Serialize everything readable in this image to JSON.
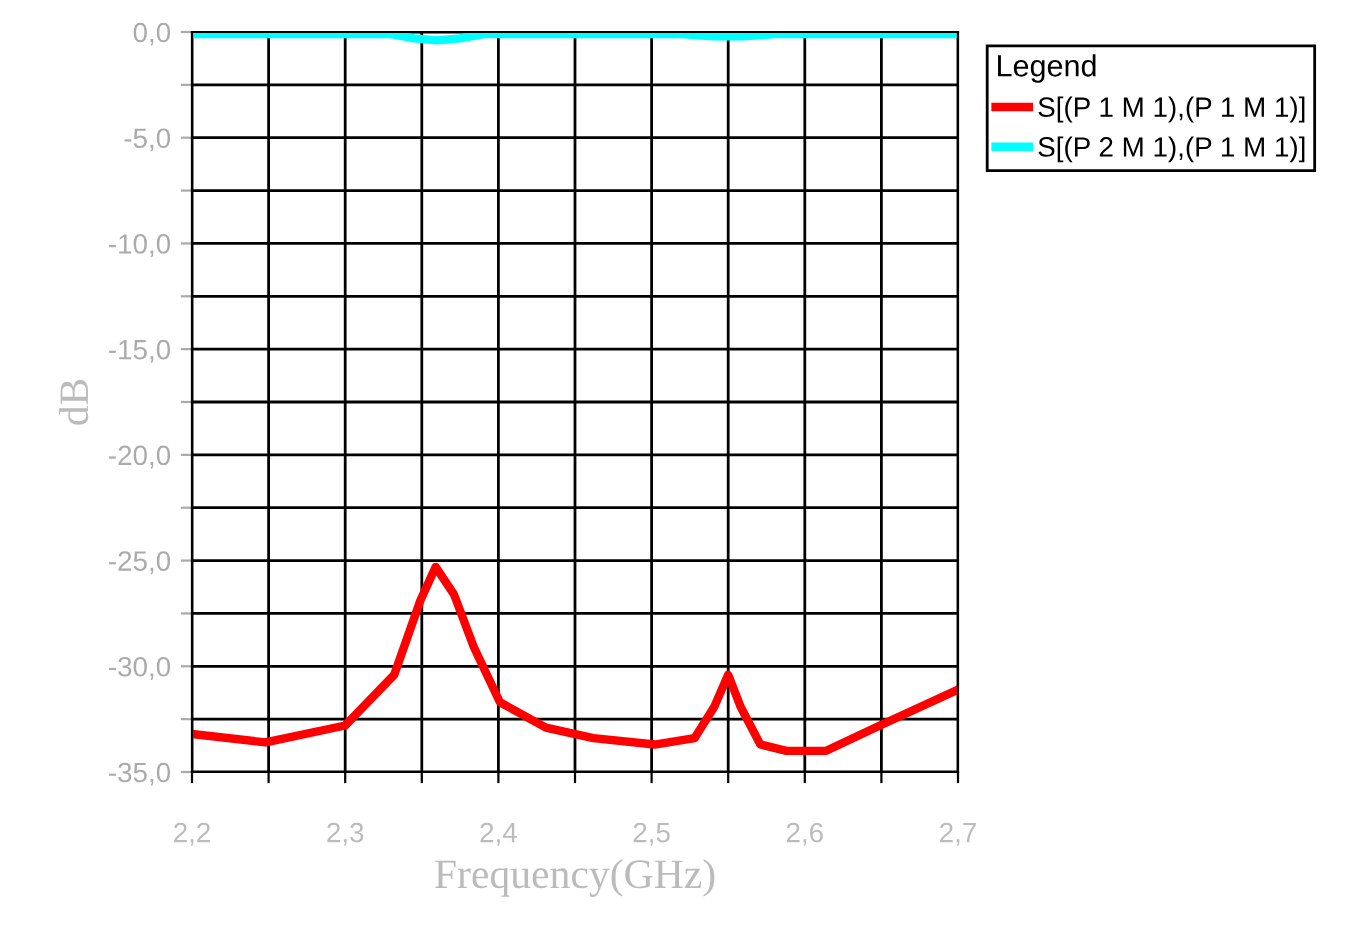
{
  "chart_data": {
    "type": "line",
    "xlabel": "Frequency(GHz)",
    "ylabel": "dB",
    "legend_title": "Legend",
    "legend": "top right",
    "grid": true,
    "marker": "none",
    "line_style": "solid",
    "xlim": [
      2.2,
      2.7
    ],
    "ylim": [
      -35,
      0
    ],
    "xticks": [
      {
        "value": 2.2,
        "label": "2,2"
      },
      {
        "value": 2.25,
        "label": null
      },
      {
        "value": 2.3,
        "label": "2,3"
      },
      {
        "value": 2.35,
        "label": null
      },
      {
        "value": 2.4,
        "label": "2,4"
      },
      {
        "value": 2.45,
        "label": null
      },
      {
        "value": 2.5,
        "label": "2,5"
      },
      {
        "value": 2.55,
        "label": null
      },
      {
        "value": 2.6,
        "label": "2,6"
      },
      {
        "value": 2.65,
        "label": null
      },
      {
        "value": 2.7,
        "label": "2,7"
      }
    ],
    "yticks": [
      {
        "value": -35,
        "label": "-35,0"
      },
      {
        "value": -32.5,
        "label": null
      },
      {
        "value": -30,
        "label": "-30,0"
      },
      {
        "value": -27.5,
        "label": null
      },
      {
        "value": -25,
        "label": "-25,0"
      },
      {
        "value": -22.5,
        "label": null
      },
      {
        "value": -20,
        "label": "-20,0"
      },
      {
        "value": -17.5,
        "label": null
      },
      {
        "value": -15,
        "label": "-15,0"
      },
      {
        "value": -12.5,
        "label": null
      },
      {
        "value": -10,
        "label": "-10,0"
      },
      {
        "value": -7.5,
        "label": null
      },
      {
        "value": -5,
        "label": "-5,0"
      },
      {
        "value": -2.5,
        "label": null
      },
      {
        "value": 0,
        "label": "0,0"
      }
    ],
    "series": [
      {
        "name": "S[(P 1 M 1),(P 1 M 1)]",
        "color": "#ff0000",
        "x": [
          2.2,
          2.248,
          2.3,
          2.332,
          2.349,
          2.359,
          2.371,
          2.384,
          2.401,
          2.431,
          2.462,
          2.502,
          2.528,
          2.541,
          2.55,
          2.558,
          2.571,
          2.588,
          2.614,
          2.649,
          2.7
        ],
        "values": [
          -33.2,
          -33.6,
          -32.8,
          -30.4,
          -26.9,
          -25.3,
          -26.6,
          -29.1,
          -31.7,
          -32.9,
          -33.4,
          -33.7,
          -33.4,
          -31.9,
          -30.4,
          -31.9,
          -33.7,
          -34.0,
          -34.0,
          -32.8,
          -31.1
        ]
      },
      {
        "name": "S[(P 2 M 1),(P 1 M 1)]",
        "color": "#00ffff",
        "x": [
          2.2,
          2.33,
          2.345,
          2.36,
          2.375,
          2.39,
          2.52,
          2.54,
          2.55,
          2.56,
          2.58,
          2.7
        ],
        "values": [
          -0.1,
          -0.1,
          -0.3,
          -0.4,
          -0.3,
          -0.1,
          -0.1,
          -0.2,
          -0.2,
          -0.2,
          -0.1,
          -0.1
        ]
      }
    ]
  }
}
